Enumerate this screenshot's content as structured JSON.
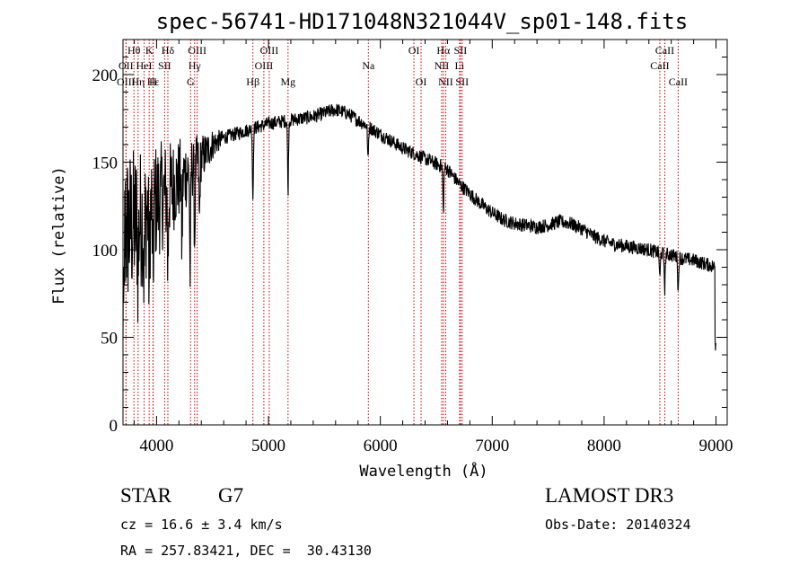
{
  "chart_data": {
    "type": "line",
    "title": "spec-56741-HD171048N321044V_sp01-148.fits",
    "xlabel": "Wavelength (Å)",
    "ylabel": "Flux (relative)",
    "xlim": [
      3700,
      9100
    ],
    "ylim": [
      0,
      220
    ],
    "x_ticks": [
      4000,
      5000,
      6000,
      7000,
      8000,
      9000
    ],
    "y_ticks": [
      0,
      50,
      100,
      150,
      200
    ],
    "line_color": "#000000",
    "marker_color": "#cc0000",
    "continuum": [
      [
        3700,
        110
      ],
      [
        3800,
        115
      ],
      [
        3900,
        120
      ],
      [
        4000,
        128
      ],
      [
        4100,
        133
      ],
      [
        4200,
        140
      ],
      [
        4300,
        146
      ],
      [
        4400,
        152
      ],
      [
        4500,
        160
      ],
      [
        4600,
        164
      ],
      [
        4700,
        166
      ],
      [
        4800,
        168
      ],
      [
        4900,
        170
      ],
      [
        5000,
        172
      ],
      [
        5100,
        173
      ],
      [
        5200,
        174
      ],
      [
        5300,
        175
      ],
      [
        5400,
        176
      ],
      [
        5500,
        178
      ],
      [
        5600,
        180
      ],
      [
        5700,
        178
      ],
      [
        5800,
        174
      ],
      [
        5900,
        170
      ],
      [
        6000,
        166
      ],
      [
        6100,
        162
      ],
      [
        6200,
        158
      ],
      [
        6300,
        155
      ],
      [
        6400,
        152
      ],
      [
        6500,
        149
      ],
      [
        6600,
        146
      ],
      [
        6700,
        138
      ],
      [
        6800,
        132
      ],
      [
        6900,
        126
      ],
      [
        7000,
        121
      ],
      [
        7100,
        117
      ],
      [
        7200,
        115
      ],
      [
        7300,
        114
      ],
      [
        7400,
        113
      ],
      [
        7500,
        114
      ],
      [
        7600,
        116
      ],
      [
        7700,
        115
      ],
      [
        7800,
        112
      ],
      [
        7900,
        108
      ],
      [
        8000,
        105
      ],
      [
        8100,
        103
      ],
      [
        8200,
        102
      ],
      [
        8300,
        101
      ],
      [
        8400,
        100
      ],
      [
        8500,
        98
      ],
      [
        8600,
        97
      ],
      [
        8700,
        95
      ],
      [
        8800,
        94
      ],
      [
        8900,
        92
      ],
      [
        9000,
        90
      ]
    ],
    "absorption_dips": [
      [
        3934,
        40
      ],
      [
        3968,
        45
      ],
      [
        3835,
        30
      ],
      [
        3889,
        35
      ],
      [
        4101,
        45
      ],
      [
        4227,
        40
      ],
      [
        4300,
        60
      ],
      [
        4340,
        45
      ],
      [
        4383,
        35
      ],
      [
        4861,
        40
      ],
      [
        5175,
        40
      ],
      [
        5890,
        20
      ],
      [
        6563,
        25
      ],
      [
        8498,
        15
      ],
      [
        8542,
        20
      ],
      [
        8662,
        20
      ]
    ],
    "line_markers": [
      {
        "label": "Hθ",
        "wavelength": 3798,
        "row": 1
      },
      {
        "label": "OII",
        "wavelength": 3727,
        "row": 2
      },
      {
        "label": "Hη",
        "wavelength": 3835,
        "row": 3
      },
      {
        "label": "Hε",
        "wavelength": 3970,
        "row": 3
      },
      {
        "label": "OIII",
        "wavelength": 3727,
        "row": 3
      },
      {
        "label": "K",
        "wavelength": 3934,
        "row": 1
      },
      {
        "label": "HeI",
        "wavelength": 3889,
        "row": 2
      },
      {
        "label": "H",
        "wavelength": 3968,
        "row": 3
      },
      {
        "label": "Hδ",
        "wavelength": 4101,
        "row": 1
      },
      {
        "label": "SII",
        "wavelength": 4072,
        "row": 2
      },
      {
        "label": "OIII",
        "wavelength": 4363,
        "row": 1
      },
      {
        "label": "Hγ",
        "wavelength": 4340,
        "row": 2
      },
      {
        "label": "G",
        "wavelength": 4304,
        "row": 3
      },
      {
        "label": "OIII",
        "wavelength": 5007,
        "row": 1
      },
      {
        "label": "OIII",
        "wavelength": 4959,
        "row": 2
      },
      {
        "label": "Hβ",
        "wavelength": 4861,
        "row": 3
      },
      {
        "label": "Mg",
        "wavelength": 5175,
        "row": 3
      },
      {
        "label": "Na",
        "wavelength": 5893,
        "row": 2
      },
      {
        "label": "OI",
        "wavelength": 6300,
        "row": 1
      },
      {
        "label": "OI",
        "wavelength": 6364,
        "row": 3
      },
      {
        "label": "Hα",
        "wavelength": 6563,
        "row": 1
      },
      {
        "label": "SII",
        "wavelength": 6716,
        "row": 1
      },
      {
        "label": "NII",
        "wavelength": 6548,
        "row": 2
      },
      {
        "label": "Li",
        "wavelength": 6708,
        "row": 2
      },
      {
        "label": "NII",
        "wavelength": 6584,
        "row": 3
      },
      {
        "label": "SII",
        "wavelength": 6731,
        "row": 3
      },
      {
        "label": "CaII",
        "wavelength": 8542,
        "row": 1
      },
      {
        "label": "CaII",
        "wavelength": 8498,
        "row": 2
      },
      {
        "label": "CaII",
        "wavelength": 8662,
        "row": 3
      }
    ]
  },
  "info": {
    "object_class": "STAR",
    "subclass": "G7",
    "survey": "LAMOST DR3",
    "cz": "cz = 16.6 ± 3.4 km/s",
    "obs_date": "Obs-Date: 20140324",
    "coords": "RA = 257.83421, DEC =  30.43130"
  }
}
